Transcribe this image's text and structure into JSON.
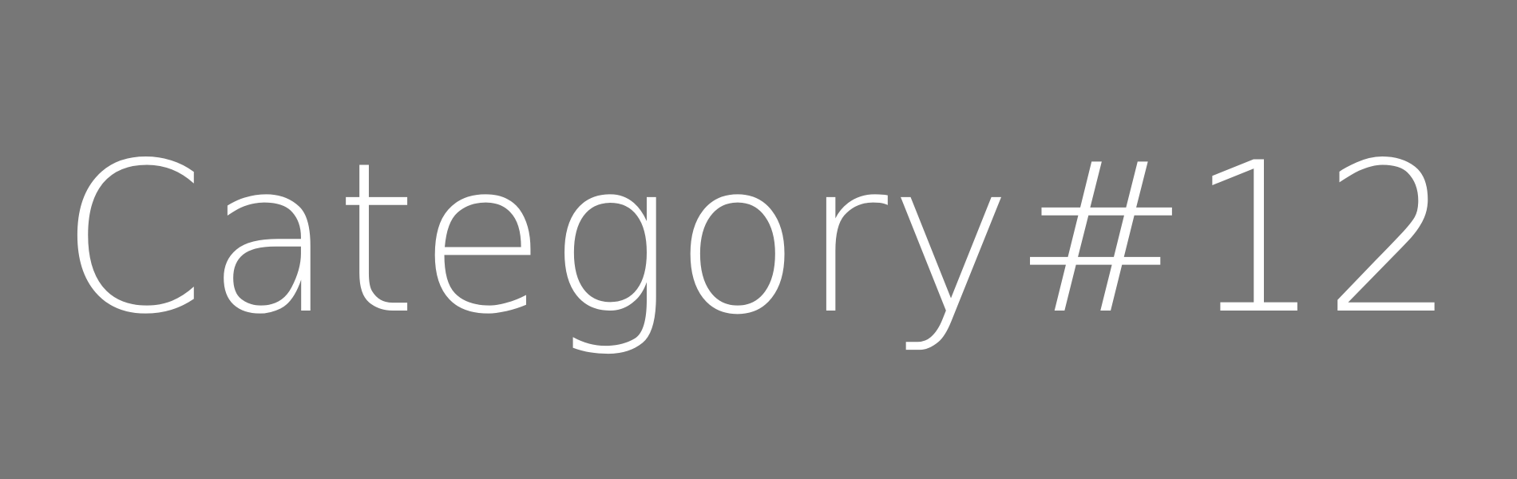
{
  "placeholder": {
    "text": "Category#12",
    "background_color": "#777777",
    "text_color": "#ffffff"
  }
}
